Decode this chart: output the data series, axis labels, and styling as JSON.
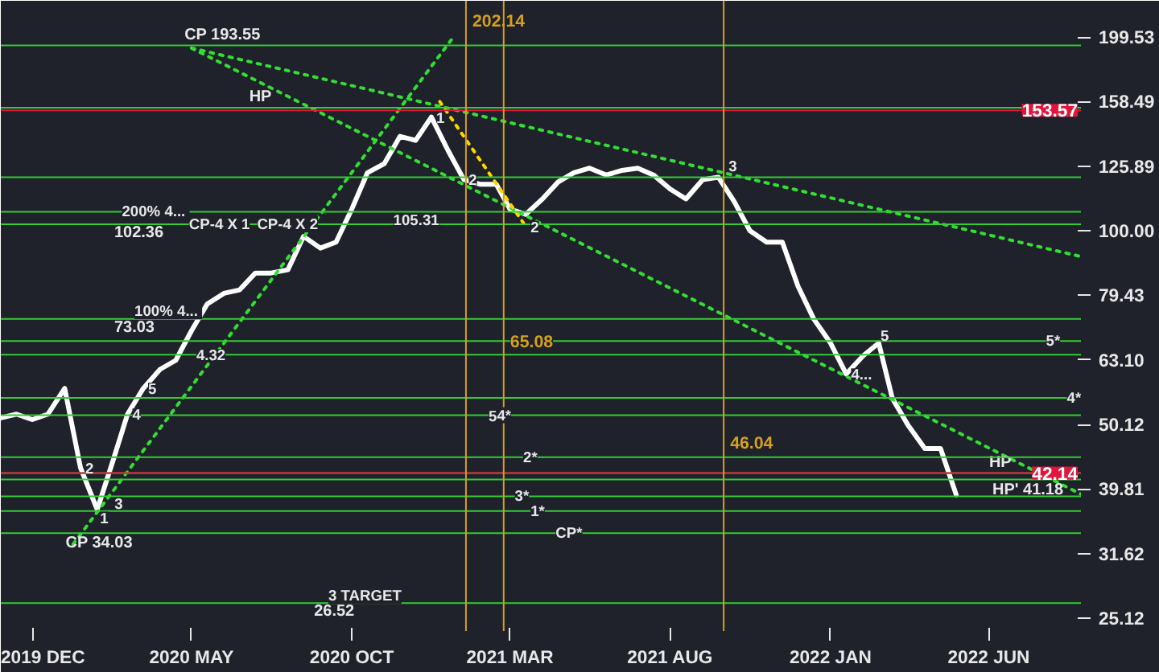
{
  "chart_data": {
    "type": "line",
    "log": "y",
    "grid": false,
    "x": [
      "2019-11-01",
      "2019-11-16",
      "2019-12-01",
      "2019-12-16",
      "2020-01-01",
      "2020-01-16",
      "2020-02-01",
      "2020-02-16",
      "2020-03-01",
      "2020-03-16",
      "2020-04-01",
      "2020-04-16",
      "2020-05-01",
      "2020-05-16",
      "2020-06-01",
      "2020-06-16",
      "2020-07-01",
      "2020-07-16",
      "2020-08-01",
      "2020-08-16",
      "2020-09-01",
      "2020-09-16",
      "2020-10-01",
      "2020-10-16",
      "2020-11-01",
      "2020-11-16",
      "2020-12-01",
      "2020-12-16",
      "2021-01-01",
      "2021-01-16",
      "2021-02-01",
      "2021-02-16",
      "2021-03-01",
      "2021-03-16",
      "2021-04-01",
      "2021-04-16",
      "2021-05-01",
      "2021-05-16",
      "2021-06-01",
      "2021-06-16",
      "2021-07-01",
      "2021-07-16",
      "2021-08-01",
      "2021-08-16",
      "2021-09-01",
      "2021-09-16",
      "2021-10-01",
      "2021-10-16",
      "2021-11-01",
      "2021-11-16",
      "2021-12-01",
      "2021-12-16",
      "2022-01-01",
      "2022-01-16",
      "2022-02-01",
      "2022-02-16",
      "2022-03-01",
      "2022-03-16",
      "2022-04-01",
      "2022-04-16",
      "2022-05-01"
    ],
    "series": [
      {
        "color": "#ffffff",
        "line_style": "solid",
        "values": [
          51.3,
          52,
          51,
          52,
          57,
          43,
          37,
          44,
          52,
          57,
          61,
          63,
          70,
          77,
          80,
          81,
          86,
          86,
          87,
          98,
          94,
          96,
          108,
          123,
          127,
          140,
          138,
          150,
          133,
          120,
          118,
          118,
          108,
          106,
          112,
          119,
          123,
          125,
          122,
          124,
          125,
          122,
          116,
          112,
          120,
          121,
          111,
          100,
          96,
          96,
          82,
          73,
          67,
          60,
          64,
          67,
          55,
          50,
          46,
          46,
          39
        ]
      },
      {
        "type": "line",
        "color": "#33dd33",
        "line_style": "dotted",
        "x": [
          "2020-05-01",
          "2022-08-28"
        ],
        "values": [
          191.8,
          91.2
        ]
      },
      {
        "type": "line",
        "color": "#33dd33",
        "line_style": "dotted",
        "x": [
          "2020-05-01",
          "2022-08-28"
        ],
        "values": [
          191.8,
          39.1
        ]
      },
      {
        "type": "line",
        "color": "#33dd33",
        "line_style": "dotted",
        "x": [
          "2020-01-09",
          "2021-01-06"
        ],
        "values": [
          32.7,
          199.5
        ]
      },
      {
        "type": "line",
        "color": "#ffd700",
        "line_style": "dotted",
        "x": [
          "2020-12-24",
          "2021-03-16"
        ],
        "values": [
          158.5,
          101.6
        ]
      }
    ],
    "xlim": [
      "2019-11-01",
      "2022-08-28"
    ],
    "xticks": [
      {
        "value": "2019-12-01",
        "label": "2019 DEC"
      },
      {
        "value": "2020-05-01",
        "label": "2020 MAY"
      },
      {
        "value": "2020-10-01",
        "label": "2020 OCT"
      },
      {
        "value": "2021-03-01",
        "label": "2021 MAR"
      },
      {
        "value": "2021-08-01",
        "label": "2021 AUG"
      },
      {
        "value": "2022-01-01",
        "label": "2022 JAN"
      },
      {
        "value": "2022-06-01",
        "label": "2022 JUN"
      }
    ],
    "ylim": [
      24,
      227
    ],
    "yticks": [
      25.12,
      31.62,
      39.81,
      50.12,
      {
        "value": 63.1,
        "label": "63.10"
      },
      79.43,
      {
        "value": 100,
        "label": "100.00"
      },
      125.89,
      158.49,
      199.53
    ],
    "ref_lines": [
      {
        "axis": "y",
        "value": 193.55,
        "label": "CP 193.55"
      },
      {
        "axis": "y",
        "value": 155,
        "label": "HP"
      },
      {
        "axis": "y",
        "value": 102.36,
        "label": "102.36"
      },
      {
        "axis": "y",
        "value": 73.03,
        "label": "73.03"
      },
      {
        "axis": "y",
        "value": 26.52,
        "label": "26.52"
      },
      {
        "axis": "y",
        "value": 34.03,
        "label": "CP 34.03"
      },
      {
        "axis": "y",
        "value": 42.14,
        "label": "HP"
      },
      {
        "axis": "y",
        "value": 41.18,
        "label": "HP' 41.18"
      },
      {
        "axis": "y",
        "value": 121
      },
      {
        "axis": "y",
        "value": 107
      },
      {
        "axis": "y",
        "value": 67.5
      },
      {
        "axis": "y",
        "value": 55.1
      },
      {
        "axis": "y",
        "value": 51.8
      },
      {
        "axis": "y",
        "value": 44.6
      },
      {
        "axis": "y",
        "value": 38.8
      },
      {
        "axis": "y",
        "value": 36.8
      },
      {
        "axis": "y",
        "value": 64.3
      },
      {
        "axis": "y",
        "value": 153.57,
        "label": "153.57",
        "color": "#e0163c"
      },
      {
        "axis": "y",
        "value": 42.14,
        "label": "42.14",
        "color": "#e0163c"
      },
      {
        "axis": "x",
        "value": "2021-01-18",
        "label": "202.14",
        "color": "#d4a020"
      },
      {
        "axis": "x",
        "value": "2021-02-23",
        "label": "65.08",
        "color": "#d4a020"
      },
      {
        "axis": "x",
        "value": "2021-09-21",
        "label": "46.04",
        "color": "#d4a020"
      }
    ],
    "annotations": [
      {
        "text": "105.31",
        "x": "2020-11-05",
        "y": 104
      },
      {
        "text": "200%  4...",
        "x": "2020-02-20",
        "y": 107
      },
      {
        "text": "100%  4...",
        "x": "2020-03-03",
        "y": 75.1
      },
      {
        "text": "3 TARGET",
        "x": "2020-09-04",
        "y": 27.2
      },
      {
        "text": "CP-4 X 1",
        "x": "2020-04-24",
        "y": 102.36
      },
      {
        "text": "CP-4 X 2",
        "x": "2020-06-28",
        "y": 102.36
      },
      {
        "text": "4.32",
        "x": "2020-05-01",
        "y": 64.3
      },
      {
        "text": "1",
        "x": "2020-01-30",
        "y": 36.0
      },
      {
        "text": "2",
        "x": "2020-01-16",
        "y": 43
      },
      {
        "text": "3",
        "x": "2020-02-13",
        "y": 37.9
      },
      {
        "text": "4",
        "x": "2020-03-01",
        "y": 52
      },
      {
        "text": "5",
        "x": "2020-03-16",
        "y": 57
      },
      {
        "text": "1",
        "x": "2020-12-16",
        "y": 150
      },
      {
        "text": "2",
        "x": "2021-01-16",
        "y": 120
      },
      {
        "text": "2",
        "x": "2021-03-16",
        "y": 101.6
      },
      {
        "text": "3",
        "x": "2021-09-21",
        "y": 126
      },
      {
        "text": "4...",
        "x": "2022-01-16",
        "y": 60
      },
      {
        "text": "5",
        "x": "2022-02-13",
        "y": 69
      },
      {
        "text": "5*",
        "x": "2022-07-21",
        "y": 67.5
      },
      {
        "text": "4*",
        "x": "2022-08-10",
        "y": 55.1
      },
      {
        "text": "5",
        "x": "2021-02-04",
        "y": 51.8
      },
      {
        "text": "4*",
        "x": "2021-02-12",
        "y": 51.8
      },
      {
        "text": "2*",
        "x": "2021-03-09",
        "y": 44.6
      },
      {
        "text": "3*",
        "x": "2021-03-01",
        "y": 38.8
      },
      {
        "text": "1*",
        "x": "2021-03-16",
        "y": 36.8
      },
      {
        "text": "CP*",
        "x": "2021-04-09",
        "y": 34.03
      }
    ]
  }
}
